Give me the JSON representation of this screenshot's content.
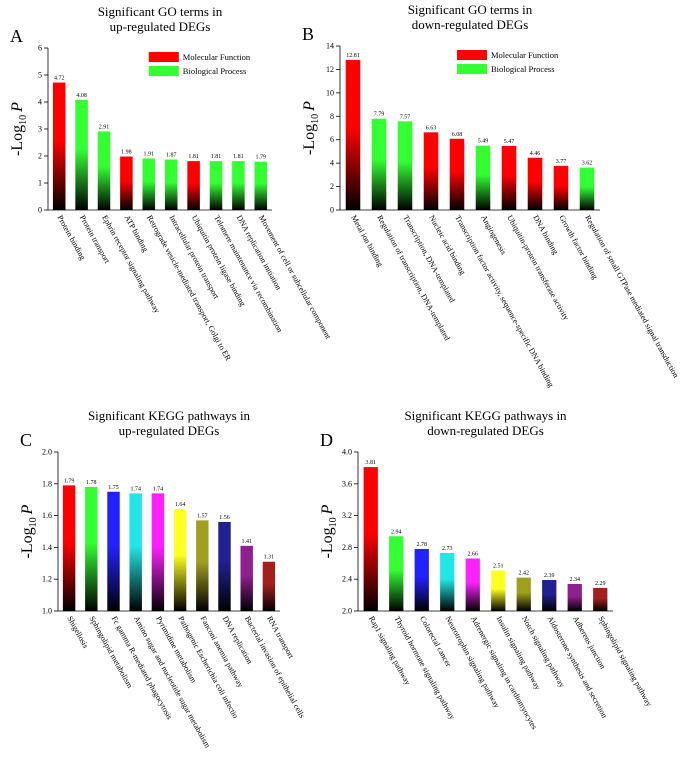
{
  "chart_data": [
    {
      "type": "bar",
      "panel": "A",
      "title": [
        "Significant GO terms in",
        "up-regulated DEGs"
      ],
      "ylabel": [
        "-Log",
        "10",
        "P"
      ],
      "categories": [
        "Protein binding",
        "Protein transport",
        "Ephrin receptor signaling pathway",
        "ATP binding",
        "Retrograde vesicle-mediated transport, Golgi to ER",
        "Intracellular protein transport",
        "Ubiquitin protein ligase binding",
        "Telomere maintenance via recombination",
        "DNA replication initiation",
        "Movement of cell or subcellular component"
      ],
      "values": [
        4.72,
        4.08,
        2.91,
        1.98,
        1.91,
        1.87,
        1.81,
        1.81,
        1.81,
        1.79
      ],
      "colors": [
        "#ff0000",
        "#33ff33",
        "#33ff33",
        "#ff0000",
        "#33ff33",
        "#33ff33",
        "#ff0000",
        "#33ff33",
        "#33ff33",
        "#33ff33"
      ],
      "legend": [
        {
          "name": "Molecular Function",
          "color": "#ff0000"
        },
        {
          "name": "Biological Process",
          "color": "#33ff33"
        }
      ],
      "ylim": [
        0,
        6
      ],
      "yticks": [
        0,
        1,
        2,
        3,
        4,
        5,
        6
      ]
    },
    {
      "type": "bar",
      "panel": "B",
      "title": [
        "Significant GO terms in",
        "down-regulated DEGs"
      ],
      "ylabel": [
        "-Log",
        "10",
        "P"
      ],
      "categories": [
        "Metal ion binding",
        "Regulation of transcription, DNA-templated",
        "Transcription, DNA-templated",
        "Nucleic acid binding",
        "Transcription factor activity, sequence-specific DNA binding",
        "Angiogenesis",
        "Ubiquitin-protein transferase activity",
        "DNA binding",
        "Growth factor binding",
        "Regulation of small GTPase mediated signal transduction"
      ],
      "values": [
        12.81,
        7.79,
        7.57,
        6.63,
        6.08,
        5.49,
        5.47,
        4.46,
        3.77,
        3.62
      ],
      "colors": [
        "#ff0000",
        "#33ff33",
        "#33ff33",
        "#ff0000",
        "#ff0000",
        "#33ff33",
        "#ff0000",
        "#ff0000",
        "#ff0000",
        "#33ff33"
      ],
      "legend": [
        {
          "name": "Molecular Function",
          "color": "#ff0000"
        },
        {
          "name": "Biological Process",
          "color": "#33ff33"
        }
      ],
      "ylim": [
        0,
        14
      ],
      "yticks": [
        0,
        2,
        4,
        6,
        8,
        10,
        12,
        14
      ]
    },
    {
      "type": "bar",
      "panel": "C",
      "title": [
        "Significant KEGG  pathways in",
        "up-regulated DEGs"
      ],
      "ylabel": [
        "-Log",
        "10",
        "P"
      ],
      "categories": [
        "Shigellosis",
        "Sphingolipid metabolism",
        "Fc gamma R-mediated phagocytosis",
        "Amino sugar and nucleotide sugar metabolism",
        "Pyrimidine metabolism",
        "Pathogenic Escherichia coli infectio",
        "Fanconi anemia pathway",
        "DNA replication",
        "Bacterial invasion of epithelial cells",
        "RNA transport"
      ],
      "values": [
        1.79,
        1.78,
        1.75,
        1.74,
        1.74,
        1.64,
        1.57,
        1.56,
        1.41,
        1.31
      ],
      "colors": [
        "#ff0000",
        "#33ff33",
        "#2222ff",
        "#22e6e6",
        "#ff22ff",
        "#ffff22",
        "#a0a020",
        "#202090",
        "#902090",
        "#a02020"
      ],
      "ylim": [
        1.0,
        2.0
      ],
      "yticks": [
        {
          "value": 1.0,
          "label": "1.0"
        },
        1.2,
        1.4,
        1.6,
        1.8,
        {
          "value": 2.0,
          "label": "2.0"
        }
      ]
    },
    {
      "type": "bar",
      "panel": "D",
      "title": [
        "Significant KEGG  pathways in",
        "down-regulated DEGs"
      ],
      "ylabel": [
        "-Log",
        "10",
        "P"
      ],
      "categories": [
        "Rap1 signaling pathway",
        "Thyroid hormone signaling pathway",
        "Colorectal cancer",
        "Neurotrophin signaling pathway",
        "Adrenergic signaling in cardiomyocytes",
        "Insulin signaling pathway",
        "Notch signaling pathway",
        "Aldosterone synthesis and secretion",
        "Adherens junction",
        "Sphingolipid signaling pathway"
      ],
      "values": [
        3.81,
        2.94,
        2.78,
        2.73,
        2.66,
        2.51,
        2.42,
        2.39,
        2.34,
        2.29
      ],
      "colors": [
        "#ff0000",
        "#33ff33",
        "#2222ff",
        "#22e6e6",
        "#ff22ff",
        "#ffff22",
        "#a0a020",
        "#202090",
        "#902090",
        "#a02020"
      ],
      "ylim": [
        2.0,
        4.0
      ],
      "yticks": [
        {
          "value": 2.0,
          "label": "2.0"
        },
        2.4,
        2.8,
        3.2,
        3.6,
        {
          "value": 4.0,
          "label": "4.0"
        }
      ]
    }
  ]
}
